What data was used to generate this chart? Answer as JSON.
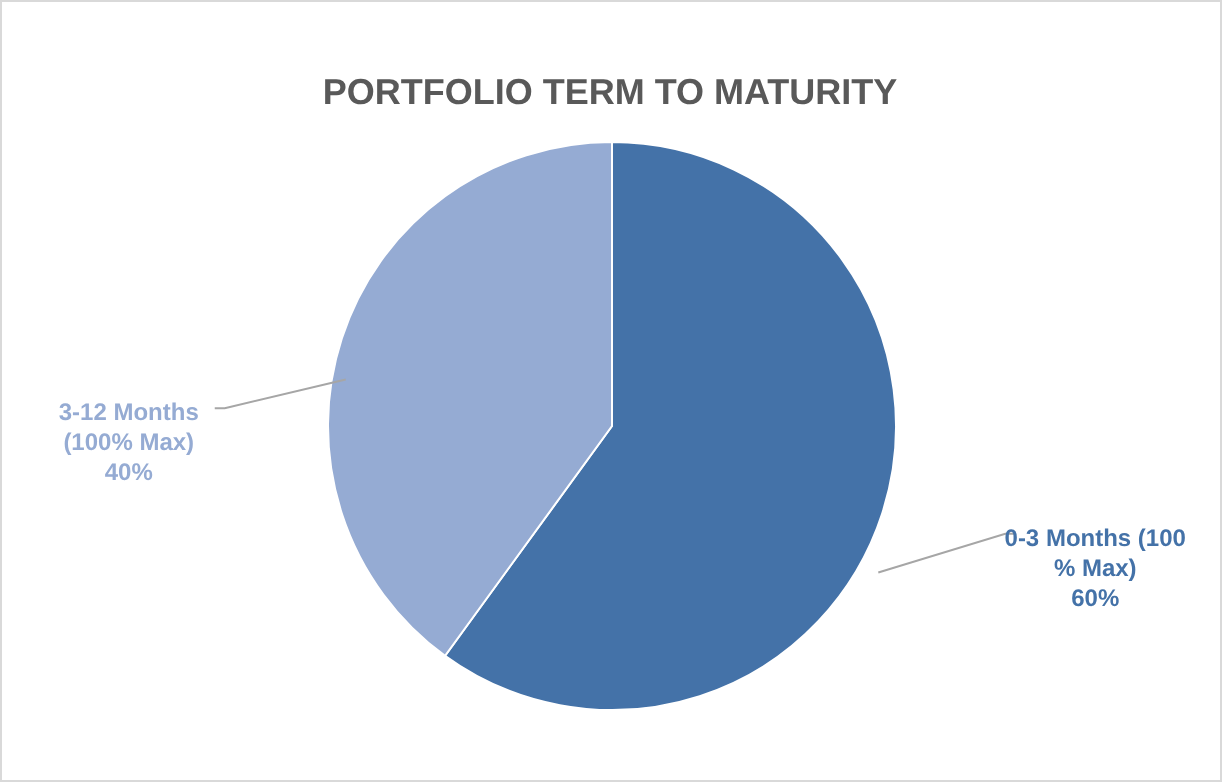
{
  "chart_data": {
    "type": "pie",
    "title": "PORTFOLIO TERM TO MATURITY",
    "categories": [
      "0-3 Months (100 % Max)",
      "3-12 Months (100% Max)"
    ],
    "values": [
      60,
      40
    ],
    "colors": [
      "#4472a8",
      "#95abd3"
    ],
    "value_labels": [
      "60%",
      "40%"
    ]
  }
}
